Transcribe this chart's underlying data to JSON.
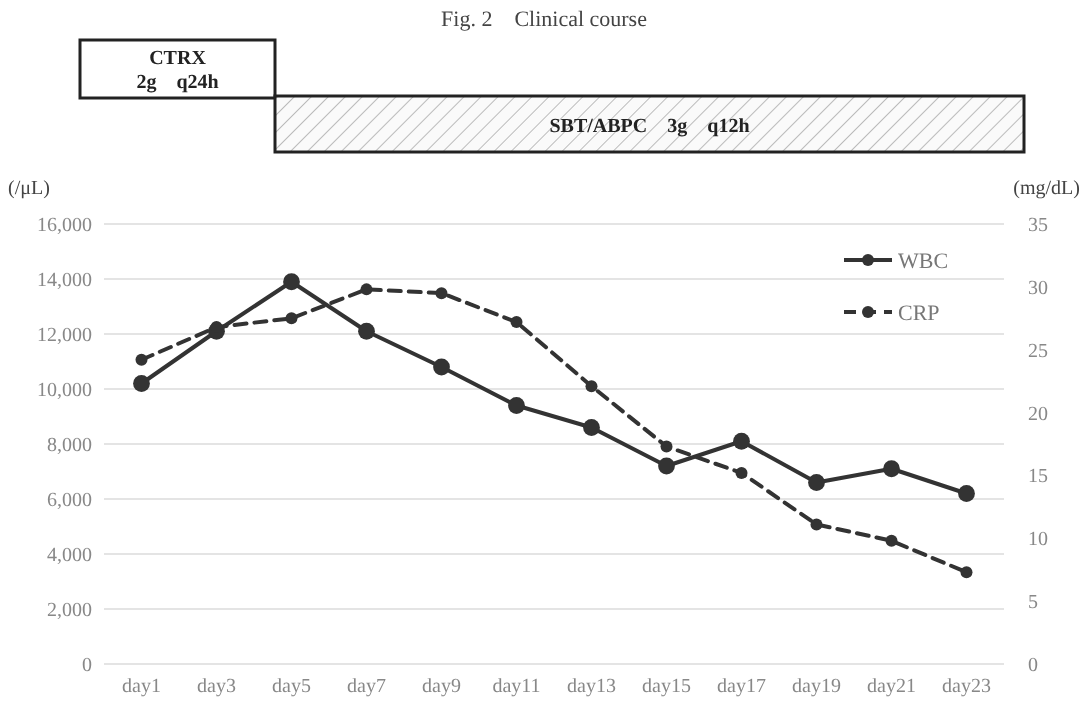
{
  "chart_data": {
    "type": "line",
    "title": "Fig. 2　Clinical course",
    "ylabel": "(/μL)",
    "y2label": "(mg/dL)",
    "annotations": [
      "CTRX\n2g　q24h",
      "SBT/ABPC　3g　q12h"
    ],
    "categories": [
      "day1",
      "day3",
      "day5",
      "day7",
      "day9",
      "day11",
      "day13",
      "day15",
      "day17",
      "day19",
      "day21",
      "day23"
    ],
    "series": [
      {
        "name": "WBC",
        "color": "#333333",
        "line_style": "solid",
        "values": [
          10200,
          12100,
          13900,
          12100,
          10800,
          9400,
          8600,
          7200,
          8100,
          6600,
          7100,
          6200
        ]
      },
      {
        "name": "CRP",
        "color": "#333333",
        "line_style": "dashed",
        "axis": "y2",
        "values": [
          24.2,
          26.8,
          27.5,
          29.8,
          29.5,
          27.2,
          22.1,
          17.3,
          15.2,
          11.1,
          9.8,
          7.3
        ]
      }
    ],
    "ylim": [
      0,
      16000
    ],
    "yticks": [
      {
        "value": 0,
        "label": "0"
      },
      {
        "value": 2000,
        "label": "2,000"
      },
      {
        "value": 4000,
        "label": "4,000"
      },
      {
        "value": 6000,
        "label": "6,000"
      },
      {
        "value": 8000,
        "label": "8,000"
      },
      {
        "value": 10000,
        "label": "10,000"
      },
      {
        "value": 12000,
        "label": "12,000"
      },
      {
        "value": 14000,
        "label": "14,000"
      },
      {
        "value": 16000,
        "label": "16,000"
      }
    ],
    "y2lim": [
      0,
      35
    ],
    "y2ticks": [
      0,
      5,
      10,
      15,
      20,
      25,
      30,
      35
    ],
    "grid": "y",
    "legend": "top right",
    "marker": "circle"
  }
}
